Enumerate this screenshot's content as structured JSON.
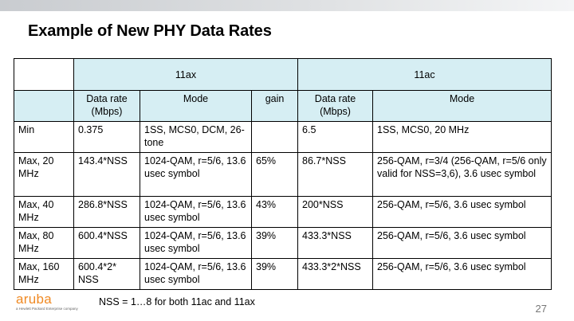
{
  "title": "Example of New PHY Data Rates",
  "table": {
    "group_headers": {
      "blank": "",
      "ax": "11ax",
      "ac": "11ac"
    },
    "sub_headers": {
      "ax_rate": "Data rate (Mbps)",
      "ax_mode": "Mode",
      "ax_gain": "gain",
      "ac_rate": "Data rate (Mbps)",
      "ac_mode": "Mode"
    },
    "rows": [
      {
        "label": "Min",
        "ax_rate": "0.375",
        "ax_mode": "1SS, MCS0, DCM, 26-tone",
        "gain": "",
        "ac_rate": "6.5",
        "ac_mode": "1SS, MCS0, 20 MHz"
      },
      {
        "label": "Max, 20 MHz",
        "ax_rate": "143.4*NSS",
        "ax_mode": "1024-QAM, r=5/6, 13.6 usec symbol",
        "gain": "65%",
        "ac_rate": "86.7*NSS",
        "ac_mode": "256-QAM, r=3/4 (256-QAM, r=5/6 only valid for NSS=3,6), 3.6 usec symbol"
      },
      {
        "label": "Max, 40 MHz",
        "ax_rate": "286.8*NSS",
        "ax_mode": "1024-QAM, r=5/6, 13.6 usec symbol",
        "gain": "43%",
        "ac_rate": "200*NSS",
        "ac_mode": "256-QAM, r=5/6, 3.6 usec symbol"
      },
      {
        "label": "Max, 80 MHz",
        "ax_rate": "600.4*NSS",
        "ax_mode": "1024-QAM, r=5/6, 13.6 usec symbol",
        "gain": "39%",
        "ac_rate": "433.3*NSS",
        "ac_mode": "256-QAM, r=5/6, 3.6 usec symbol"
      },
      {
        "label": "Max, 160 MHz",
        "ax_rate": "600.4*2* NSS",
        "ax_mode": "1024-QAM, r=5/6, 13.6 usec symbol",
        "gain": "39%",
        "ac_rate": "433.3*2*NSS",
        "ac_mode": "256-QAM, r=5/6, 3.6 usec symbol"
      }
    ]
  },
  "footnote": "NSS = 1…8 for both 11ac and 11ax",
  "page_number": "27",
  "logo": {
    "wordmark": "aruba",
    "tagline": "a Hewlett Packard Enterprise company",
    "color": "#f08a24"
  },
  "colors": {
    "header_fill": "#d6eef3"
  }
}
